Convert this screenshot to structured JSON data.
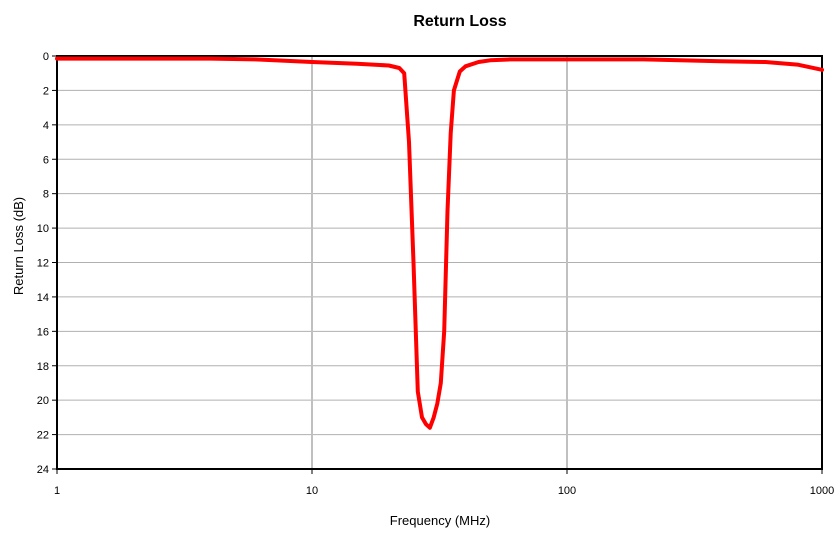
{
  "chart_data": {
    "type": "line",
    "title": "Return Loss",
    "xlabel": "Frequency (MHz)",
    "ylabel": "Return Loss (dB)",
    "x_scale": "log",
    "xlim": [
      1,
      1000
    ],
    "ylim": [
      0,
      24
    ],
    "y_inverted": true,
    "x_ticks": [
      1,
      10,
      100,
      1000
    ],
    "x_tick_labels": [
      "1",
      "10",
      "100",
      "1000"
    ],
    "y_ticks": [
      0,
      2,
      4,
      6,
      8,
      10,
      12,
      14,
      16,
      18,
      20,
      22,
      24
    ],
    "y_tick_labels": [
      "0",
      "2",
      "4",
      "6",
      "8",
      "10",
      "12",
      "14",
      "16",
      "18",
      "20",
      "22",
      "24"
    ],
    "grid": {
      "x": true,
      "y": true
    },
    "line_color": "#ff0000",
    "x_grid_color": "#c0c0c0",
    "y_grid_color": "#b0b0b0",
    "series": [
      {
        "x": [
          1,
          2,
          4,
          6,
          10,
          15,
          20,
          22,
          23,
          24,
          25,
          26,
          27,
          28,
          29,
          30,
          31,
          32,
          33,
          34,
          35,
          36,
          38,
          40,
          45,
          50,
          60,
          100,
          200,
          400,
          600,
          800,
          1000
        ],
        "y": [
          0.15,
          0.15,
          0.15,
          0.2,
          0.35,
          0.45,
          0.55,
          0.7,
          1.0,
          5.0,
          12.0,
          19.5,
          21.0,
          21.4,
          21.6,
          21.0,
          20.2,
          19.0,
          16.0,
          9.0,
          4.5,
          2.0,
          0.9,
          0.6,
          0.35,
          0.25,
          0.2,
          0.2,
          0.2,
          0.3,
          0.35,
          0.5,
          0.8
        ]
      }
    ]
  }
}
